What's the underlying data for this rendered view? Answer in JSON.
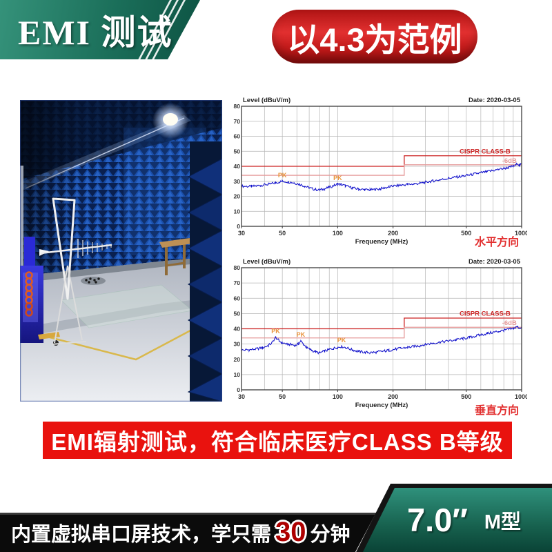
{
  "header": {
    "title": "EMI 测试",
    "badge": "以4.3为范例"
  },
  "banner": {
    "text": "EMI辐射测试，符合临床医疗CLASS B等级"
  },
  "bottom_bar": {
    "before": "内置虚拟串口屏技术，学只需",
    "highlight": "30",
    "after": "分钟"
  },
  "product": {
    "size": "7.0″",
    "model": "M型"
  },
  "colors": {
    "accent_green": "#1b6f5a",
    "accent_red": "#e9120e",
    "trace_blue": "#1414cc",
    "limit_red": "#cc2222",
    "limit_pink": "#e59a9a",
    "pk_orange": "#e8923a"
  },
  "chart_data": [
    {
      "type": "line",
      "title": "Level (dBuV/m)",
      "date": "Date: 2020-03-05",
      "xlabel": "Frequency (MHz)",
      "direction_label": "水平方向",
      "x_scale": "log",
      "xlim": [
        30,
        1000
      ],
      "ylim": [
        0,
        80
      ],
      "x_ticks": [
        30,
        50,
        100,
        200,
        500,
        1000
      ],
      "x_grid": [
        30,
        40,
        50,
        60,
        70,
        80,
        90,
        100,
        200,
        300,
        400,
        500,
        600,
        700,
        800,
        900,
        1000
      ],
      "y_ticks": [
        0,
        10,
        20,
        30,
        40,
        50,
        60,
        70,
        80
      ],
      "limit_lines": [
        {
          "label": "CISPR CLASS-B",
          "color": "#cc2222",
          "points": [
            [
              30,
              40
            ],
            [
              230,
              40
            ],
            [
              230,
              47
            ],
            [
              1000,
              47
            ]
          ],
          "label_x": 870,
          "label_y": 48.6
        },
        {
          "label": "-6dB",
          "color": "#e59a9a",
          "points": [
            [
              30,
              34
            ],
            [
              230,
              34
            ],
            [
              230,
              41
            ],
            [
              1000,
              41
            ]
          ],
          "label_x": 940,
          "label_y": 42.4
        }
      ],
      "series": [
        {
          "name": "PK trace",
          "color": "#1414cc",
          "points": [
            [
              30,
              26.8
            ],
            [
              34,
              26.5
            ],
            [
              38,
              27.3
            ],
            [
              42,
              28
            ],
            [
              46,
              29
            ],
            [
              50,
              30
            ],
            [
              54,
              29.6
            ],
            [
              58,
              29
            ],
            [
              62,
              28
            ],
            [
              66,
              26.8
            ],
            [
              70,
              25.6
            ],
            [
              75,
              24.6
            ],
            [
              80,
              24.2
            ],
            [
              85,
              25
            ],
            [
              90,
              26
            ],
            [
              95,
              27
            ],
            [
              100,
              28.2
            ],
            [
              105,
              27.8
            ],
            [
              110,
              27
            ],
            [
              120,
              25.6
            ],
            [
              130,
              24.8
            ],
            [
              140,
              24.4
            ],
            [
              150,
              24.3
            ],
            [
              160,
              24.5
            ],
            [
              170,
              25
            ],
            [
              180,
              25.6
            ],
            [
              190,
              26.2
            ],
            [
              200,
              26.8
            ],
            [
              220,
              27.4
            ],
            [
              240,
              27.9
            ],
            [
              260,
              28.2
            ],
            [
              280,
              28.7
            ],
            [
              300,
              29.4
            ],
            [
              330,
              30.2
            ],
            [
              360,
              31
            ],
            [
              400,
              32
            ],
            [
              440,
              32.8
            ],
            [
              480,
              33.5
            ],
            [
              520,
              34.2
            ],
            [
              560,
              35
            ],
            [
              600,
              35.7
            ],
            [
              650,
              36.4
            ],
            [
              700,
              37.2
            ],
            [
              750,
              37.9
            ],
            [
              800,
              38.6
            ],
            [
              850,
              39.2
            ],
            [
              900,
              40
            ],
            [
              930,
              40.8
            ],
            [
              950,
              41.8
            ],
            [
              970,
              40.8
            ],
            [
              1000,
              41.3
            ]
          ]
        }
      ],
      "peak_markers": [
        {
          "x": 50,
          "y": 31.8,
          "label": "PK"
        },
        {
          "x": 100,
          "y": 30.0,
          "label": "PK"
        }
      ]
    },
    {
      "type": "line",
      "title": "Level (dBuV/m)",
      "date": "Date: 2020-03-05",
      "xlabel": "Frequency (MHz)",
      "direction_label": "垂直方向",
      "x_scale": "log",
      "xlim": [
        30,
        1000
      ],
      "ylim": [
        0,
        80
      ],
      "x_ticks": [
        30,
        50,
        100,
        200,
        500,
        1000
      ],
      "x_grid": [
        30,
        40,
        50,
        60,
        70,
        80,
        90,
        100,
        200,
        300,
        400,
        500,
        600,
        700,
        800,
        900,
        1000
      ],
      "y_ticks": [
        0,
        10,
        20,
        30,
        40,
        50,
        60,
        70,
        80
      ],
      "limit_lines": [
        {
          "label": "CISPR CLASS-B",
          "color": "#cc2222",
          "points": [
            [
              30,
              40
            ],
            [
              230,
              40
            ],
            [
              230,
              47
            ],
            [
              1000,
              47
            ]
          ],
          "label_x": 870,
          "label_y": 48.6
        },
        {
          "label": "-6dB",
          "color": "#e59a9a",
          "points": [
            [
              30,
              34
            ],
            [
              230,
              34
            ],
            [
              230,
              41
            ],
            [
              1000,
              41
            ]
          ],
          "label_x": 940,
          "label_y": 42.4
        }
      ],
      "series": [
        {
          "name": "PK trace",
          "color": "#1414cc",
          "points": [
            [
              30,
              26
            ],
            [
              33,
              26.2
            ],
            [
              36,
              26.8
            ],
            [
              39,
              27.6
            ],
            [
              42,
              29
            ],
            [
              44,
              31
            ],
            [
              46,
              34.5
            ],
            [
              48,
              32
            ],
            [
              50,
              30.8
            ],
            [
              53,
              30
            ],
            [
              56,
              29.6
            ],
            [
              59,
              29.2
            ],
            [
              61,
              30
            ],
            [
              63,
              32
            ],
            [
              65,
              30
            ],
            [
              68,
              27.6
            ],
            [
              72,
              26
            ],
            [
              76,
              24.8
            ],
            [
              80,
              24.2
            ],
            [
              85,
              25.4
            ],
            [
              90,
              26.4
            ],
            [
              95,
              27.2
            ],
            [
              100,
              27.8
            ],
            [
              105,
              28.4
            ],
            [
              110,
              27.8
            ],
            [
              120,
              26.2
            ],
            [
              130,
              25.2
            ],
            [
              140,
              24.6
            ],
            [
              150,
              24.4
            ],
            [
              160,
              24.6
            ],
            [
              170,
              25
            ],
            [
              180,
              25.4
            ],
            [
              190,
              25.9
            ],
            [
              200,
              26.4
            ],
            [
              220,
              27.2
            ],
            [
              240,
              27.8
            ],
            [
              260,
              28.4
            ],
            [
              280,
              29
            ],
            [
              300,
              29.8
            ],
            [
              330,
              30.6
            ],
            [
              360,
              31.2
            ],
            [
              400,
              32
            ],
            [
              440,
              32.8
            ],
            [
              480,
              33.6
            ],
            [
              520,
              34.3
            ],
            [
              560,
              35.2
            ],
            [
              600,
              36
            ],
            [
              650,
              36.9
            ],
            [
              700,
              37.7
            ],
            [
              750,
              38.3
            ],
            [
              800,
              39
            ],
            [
              850,
              39.6
            ],
            [
              900,
              40.2
            ],
            [
              930,
              40.9
            ],
            [
              950,
              41.4
            ],
            [
              970,
              40.6
            ],
            [
              1000,
              41
            ]
          ]
        }
      ],
      "peak_markers": [
        {
          "x": 46,
          "y": 36.2,
          "label": "PK"
        },
        {
          "x": 63,
          "y": 33.8,
          "label": "PK"
        },
        {
          "x": 105,
          "y": 30.2,
          "label": "PK"
        }
      ]
    }
  ]
}
